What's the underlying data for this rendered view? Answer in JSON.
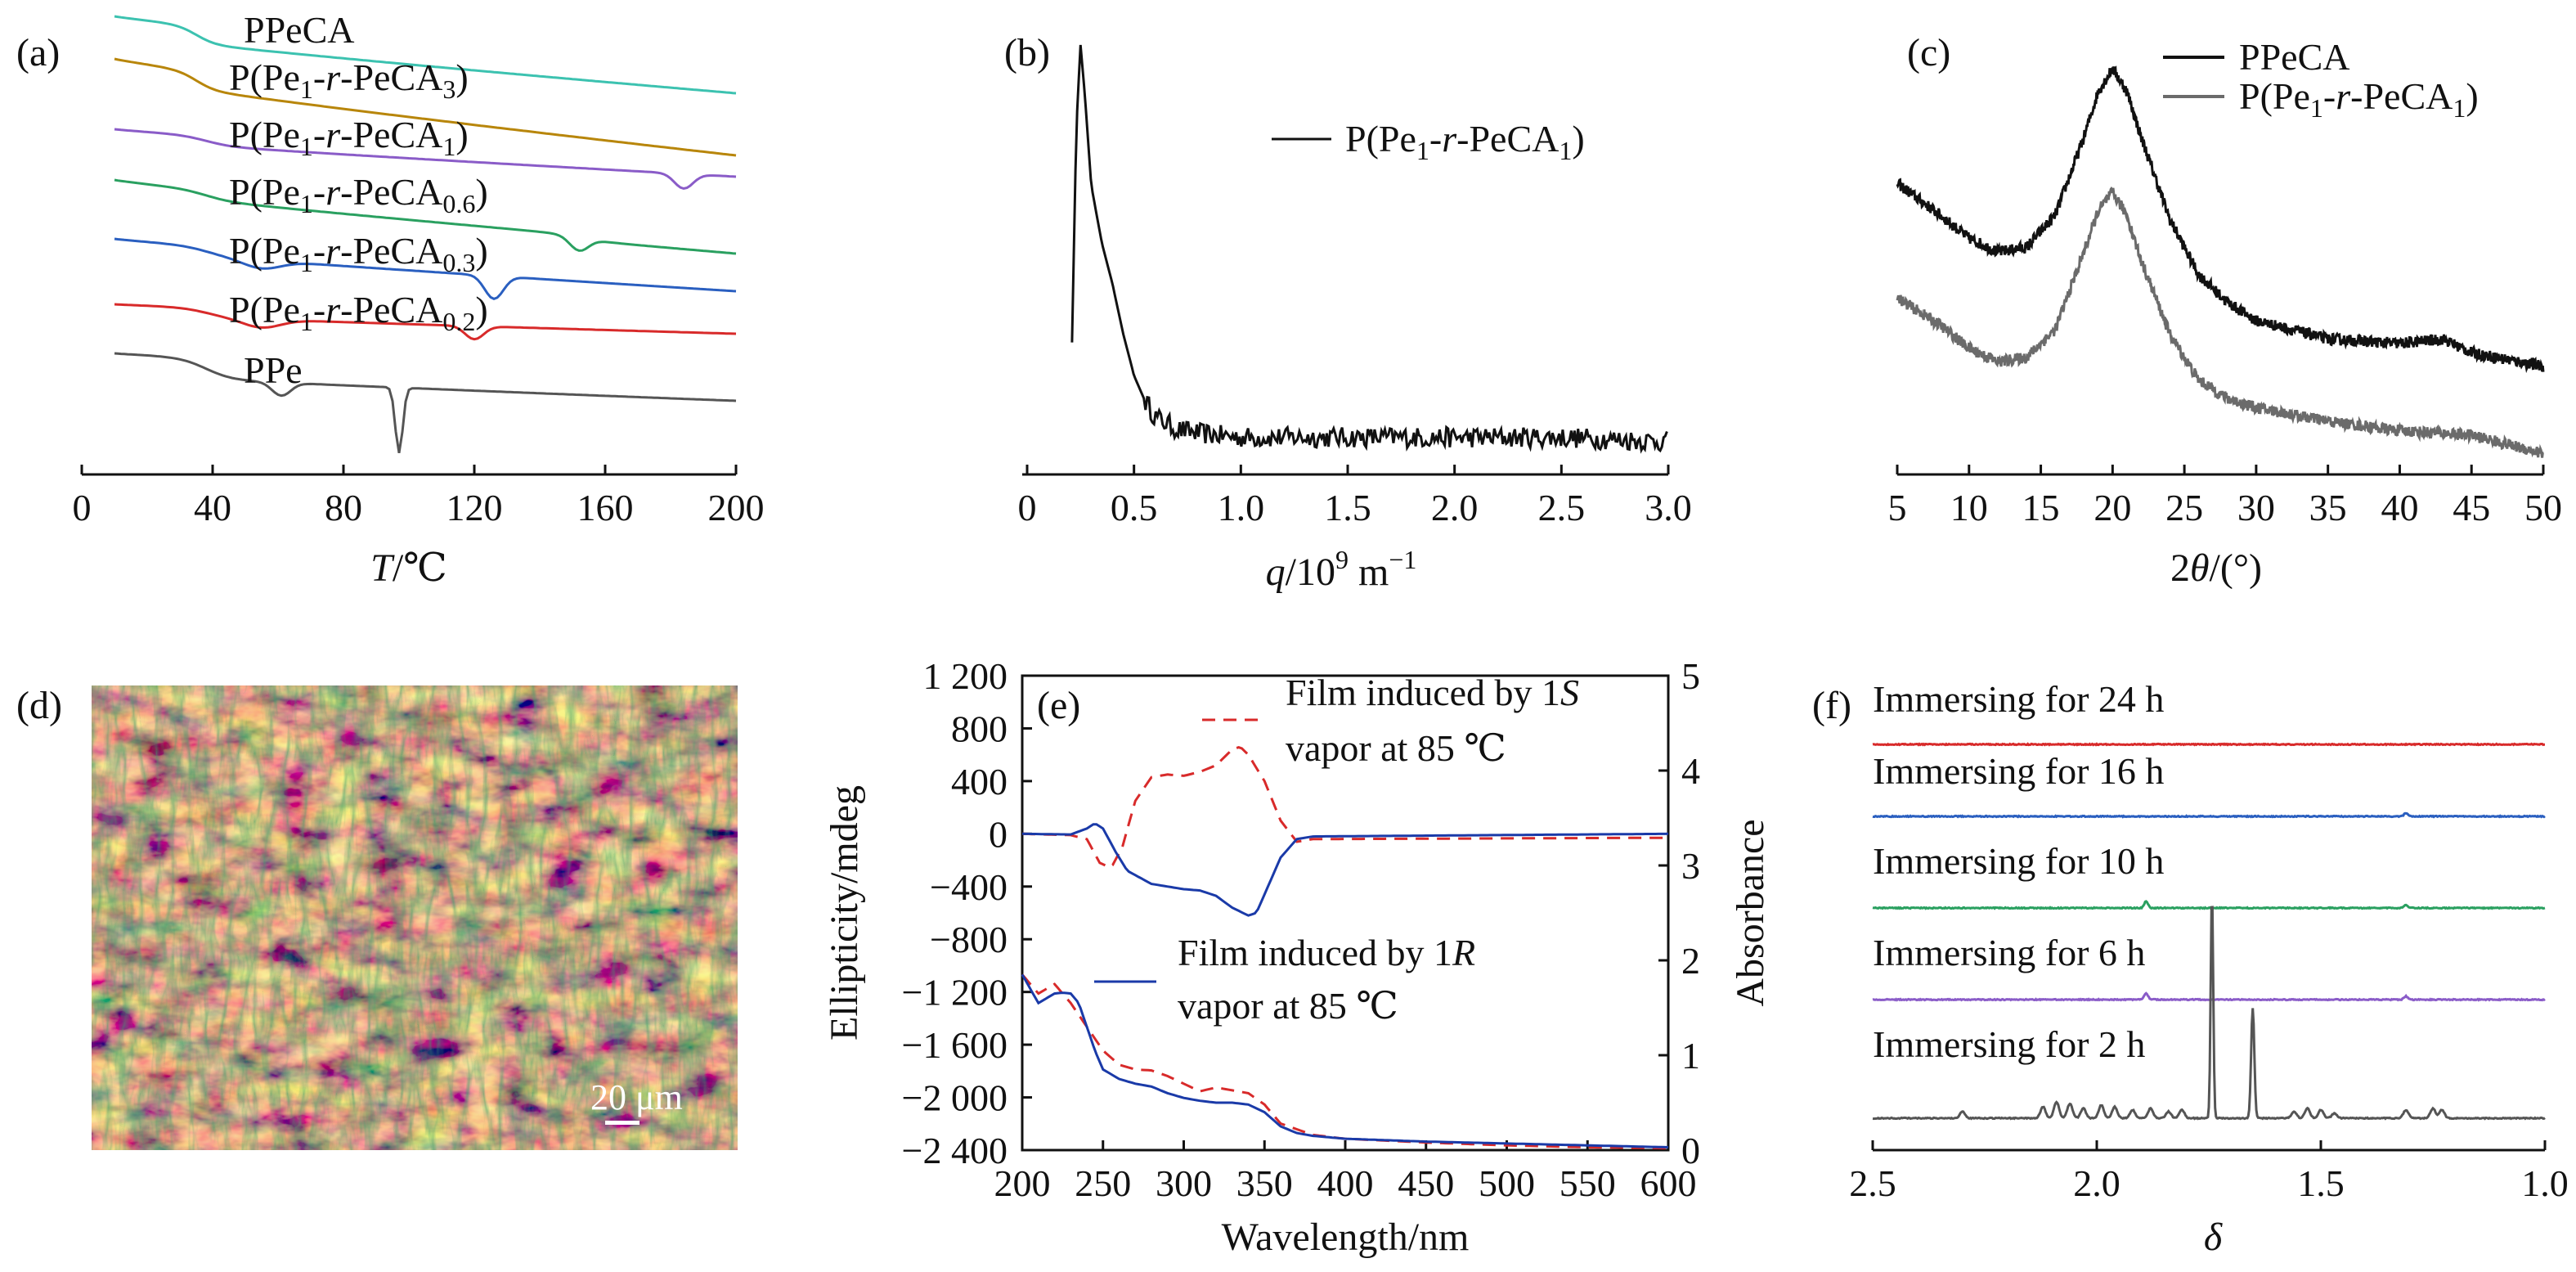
{
  "panel_labels": [
    "(a)",
    "(b)",
    "(c)",
    "(d)",
    "(e)",
    "(f)"
  ],
  "chart_data": [
    {
      "panel": "(a)",
      "type": "line",
      "xlabel": "T/℃",
      "xlim": [
        0,
        200
      ],
      "xticks": [
        "0",
        "40",
        "80",
        "120",
        "160",
        "200"
      ],
      "y_axis": "none (stacked, offset curves)",
      "series": [
        {
          "name": "PPeCA",
          "color": "#3cc2b0",
          "baseline_t": [
            10,
            35,
            60,
            120,
            200
          ],
          "note": "glass step near 35 ℃"
        },
        {
          "name": "P(Pe1-r-PeCA3)",
          "color": "#b8860b",
          "note": "glass step near 35 ℃"
        },
        {
          "name": "P(Pe1-r-PeCA1)",
          "color": "#8a5cc8",
          "features": {
            "endotherm_peak_t": 184
          }
        },
        {
          "name": "P(Pe1-r-PeCA0.6)",
          "color": "#2aa060",
          "features": {
            "endotherm_peak_t": 152
          }
        },
        {
          "name": "P(Pe1-r-PeCA0.3)",
          "color": "#2a5fc0",
          "features": {
            "endotherm_peak_t": 126
          }
        },
        {
          "name": "P(Pe1-r-PeCA0.2)",
          "color": "#d82a2a",
          "features": {
            "endotherm_peak_t": 120
          }
        },
        {
          "name": "PPe",
          "color": "#555555",
          "features": {
            "endotherm_peak_t": 97,
            "minor_peak_t": 61
          }
        }
      ]
    },
    {
      "panel": "(b)",
      "type": "line",
      "xlabel": "q/10⁹ m⁻¹",
      "xlim": [
        0,
        3.0
      ],
      "xticks": [
        "0",
        "0.5",
        "1.0",
        "1.5",
        "2.0",
        "2.5",
        "3.0"
      ],
      "legend": "top-right",
      "series": [
        {
          "name": "P(Pe1-r-PeCA1)",
          "color": "#111111",
          "x": [
            0.21,
            0.23,
            0.25,
            0.27,
            0.3,
            0.35,
            0.4,
            0.45,
            0.5,
            0.55,
            0.6,
            0.7,
            0.8,
            1.0,
            1.5,
            2.0,
            2.5,
            3.0
          ],
          "y": [
            0.28,
            0.8,
            1.0,
            0.88,
            0.66,
            0.52,
            0.42,
            0.3,
            0.2,
            0.14,
            0.1,
            0.07,
            0.06,
            0.05,
            0.05,
            0.05,
            0.05,
            0.04
          ],
          "peak_q": 0.25
        }
      ]
    },
    {
      "panel": "(c)",
      "type": "line",
      "xlabel": "2θ/(°)",
      "xlim": [
        5,
        50
      ],
      "xticks": [
        "5",
        "10",
        "15",
        "20",
        "25",
        "30",
        "35",
        "40",
        "45",
        "50"
      ],
      "legend": "top-right",
      "series": [
        {
          "name": "PPeCA",
          "color": "#111111",
          "x": [
            5,
            8,
            10,
            12,
            14,
            16,
            18,
            19,
            20,
            21,
            22,
            24,
            26,
            28,
            30,
            35,
            40,
            43,
            45,
            50
          ],
          "y": [
            0.6,
            0.53,
            0.48,
            0.45,
            0.46,
            0.53,
            0.7,
            0.8,
            0.85,
            0.8,
            0.7,
            0.52,
            0.4,
            0.34,
            0.3,
            0.26,
            0.25,
            0.26,
            0.23,
            0.2
          ]
        },
        {
          "name": "P(Pe1-r-PeCA1)",
          "color": "#6b6b6b",
          "x": [
            5,
            8,
            10,
            12,
            14,
            16,
            18,
            19,
            20,
            21,
            22,
            24,
            26,
            28,
            30,
            35,
            40,
            45,
            50
          ],
          "y": [
            0.35,
            0.29,
            0.24,
            0.21,
            0.22,
            0.28,
            0.45,
            0.54,
            0.58,
            0.53,
            0.43,
            0.27,
            0.17,
            0.13,
            0.11,
            0.08,
            0.06,
            0.05,
            0.01
          ]
        }
      ]
    },
    {
      "panel": "(e)",
      "type": "line",
      "xlabel": "Wavelength/nm",
      "ylabel_left": "Ellipticity/mdeg",
      "ylabel_right": "Absorbance",
      "xlim": [
        200,
        600
      ],
      "ylim_left": [
        -2400,
        1200
      ],
      "ylim_right": [
        0,
        5
      ],
      "xticks": [
        "200",
        "250",
        "300",
        "350",
        "400",
        "450",
        "500",
        "550",
        "600"
      ],
      "yticks_left": [
        "1 200",
        "800",
        "400",
        "0",
        "−400",
        "−800",
        "−1 200",
        "−1 600",
        "−2 000",
        "−2 400"
      ],
      "yticks_right": [
        "0",
        "1",
        "2",
        "3",
        "4",
        "5"
      ],
      "legend": [
        {
          "line1": "Film induced by 1S",
          "line2": "vapor at 85 ℃",
          "style": "dashed",
          "color": "#d82a2a"
        },
        {
          "line1": "Film induced by 1R",
          "line2": "vapor at 85 ℃",
          "style": "solid",
          "color": "#1a3aa8"
        }
      ],
      "series": [
        {
          "name": "1S CD",
          "axis": "left",
          "color": "#d82a2a",
          "dash": true,
          "x": [
            200,
            230,
            240,
            248,
            255,
            262,
            270,
            280,
            290,
            300,
            310,
            320,
            330,
            335,
            340,
            350,
            360,
            370,
            380,
            600
          ],
          "y": [
            0,
            -10,
            -40,
            -220,
            -260,
            -100,
            250,
            430,
            450,
            440,
            470,
            520,
            640,
            660,
            600,
            400,
            100,
            -60,
            -40,
            -30
          ]
        },
        {
          "name": "1R CD",
          "axis": "left",
          "color": "#1a3aa8",
          "dash": false,
          "x": [
            200,
            230,
            240,
            245,
            250,
            258,
            265,
            280,
            300,
            310,
            320,
            330,
            340,
            345,
            350,
            360,
            370,
            380,
            600
          ],
          "y": [
            0,
            -5,
            40,
            80,
            40,
            -140,
            -280,
            -380,
            -420,
            -430,
            -470,
            -560,
            -620,
            -600,
            -460,
            -180,
            -40,
            -20,
            0
          ]
        },
        {
          "name": "1S Abs",
          "axis": "right",
          "color": "#d82a2a",
          "dash": true,
          "x": [
            200,
            210,
            220,
            230,
            240,
            250,
            260,
            270,
            280,
            290,
            300,
            310,
            320,
            330,
            340,
            350,
            360,
            380,
            400,
            450,
            500,
            550,
            600
          ],
          "y": [
            1.85,
            1.65,
            1.75,
            1.55,
            1.3,
            1.05,
            0.9,
            0.85,
            0.84,
            0.78,
            0.7,
            0.62,
            0.66,
            0.63,
            0.6,
            0.48,
            0.28,
            0.16,
            0.12,
            0.08,
            0.05,
            0.03,
            0.02
          ]
        },
        {
          "name": "1R Abs",
          "axis": "right",
          "color": "#1a3aa8",
          "dash": false,
          "x": [
            200,
            205,
            210,
            215,
            220,
            225,
            230,
            235,
            240,
            245,
            250,
            260,
            270,
            280,
            290,
            300,
            310,
            320,
            330,
            340,
            350,
            360,
            370,
            380,
            400,
            450,
            500,
            550,
            600
          ],
          "y": [
            1.85,
            1.7,
            1.55,
            1.6,
            1.65,
            1.66,
            1.65,
            1.55,
            1.3,
            1.05,
            0.85,
            0.75,
            0.7,
            0.67,
            0.6,
            0.55,
            0.52,
            0.5,
            0.5,
            0.48,
            0.4,
            0.25,
            0.18,
            0.15,
            0.12,
            0.09,
            0.07,
            0.05,
            0.03
          ]
        }
      ]
    },
    {
      "panel": "(f)",
      "type": "line",
      "xlabel": "δ",
      "xlim": [
        2.5,
        1.0
      ],
      "xticks": [
        "2.5",
        "2.0",
        "1.5",
        "1.0"
      ],
      "series": [
        {
          "name": "Immersing for 24 h",
          "color": "#d82a2a",
          "peaks": []
        },
        {
          "name": "Immersing for 16 h",
          "color": "#2a5fc0",
          "peaks": [
            1.31
          ]
        },
        {
          "name": "Immersing for 10 h",
          "color": "#2aa060",
          "peaks": [
            1.89,
            1.31
          ]
        },
        {
          "name": "Immersing for 6 h",
          "color": "#8a5cc8",
          "peaks": [
            1.89,
            1.31
          ]
        },
        {
          "name": "Immersing for 2 h",
          "color": "#555555",
          "peaks": [
            1.74,
            1.65,
            2.09,
            2.05,
            1.95,
            1.52,
            1.31
          ]
        }
      ]
    }
  ],
  "labels": {
    "a": {
      "series": [
        "PPeCA",
        "P(Pe",
        "1",
        "-",
        "r",
        "-PeCA",
        "3",
        ")"
      ],
      "names": [
        {
          "pre": "P(Pe",
          "s1": "1",
          "mid": "-",
          "it": "r",
          "post": "-PeCA",
          "s2": "3",
          "end": ")"
        },
        {
          "pre": "P(Pe",
          "s1": "1",
          "mid": "-",
          "it": "r",
          "post": "-PeCA",
          "s2": "1",
          "end": ")"
        },
        {
          "pre": "P(Pe",
          "s1": "1",
          "mid": "-",
          "it": "r",
          "post": "-PeCA",
          "s2": "0.6",
          "end": ")"
        },
        {
          "pre": "P(Pe",
          "s1": "1",
          "mid": "-",
          "it": "r",
          "post": "-PeCA",
          "s2": "0.3",
          "end": ")"
        },
        {
          "pre": "P(Pe",
          "s1": "1",
          "mid": "-",
          "it": "r",
          "post": "-PeCA",
          "s2": "0.2",
          "end": ")"
        }
      ],
      "top": "PPeCA",
      "bottom": "PPe",
      "xlabel_it": "T",
      "xlabel_rest": "/℃"
    },
    "b": {
      "legend": {
        "pre": "P(Pe",
        "s1": "1",
        "mid": "-",
        "it": "r",
        "post": "-PeCA",
        "s2": "1",
        "end": ")"
      },
      "xlabel_it": "q",
      "xlabel_rest": "/10",
      "xlabel_sup": "9",
      "xlabel_unit": " m",
      "xlabel_sup2": "−1"
    },
    "c": {
      "legend1": "PPeCA",
      "legend2": {
        "pre": "P(Pe",
        "s1": "1",
        "mid": "-",
        "it": "r",
        "post": "-PeCA",
        "s2": "1",
        "end": ")"
      },
      "xlabel_pre": "2",
      "xlabel_it": "θ",
      "xlabel_rest": "/(°)"
    },
    "d": {
      "scalebar": "20 μm"
    },
    "e": {
      "s_line1_pre": "Film induced by 1",
      "s_line1_it": "S",
      "s_line2": "vapor at 85 ℃",
      "r_line1_pre": "Film induced by 1",
      "r_line1_it": "R",
      "r_line2": "vapor at 85 ℃",
      "ylabel_left": "Ellipticity/mdeg",
      "ylabel_right": "Absorbance",
      "xlabel": "Wavelength/nm"
    },
    "f": {
      "xlabel": "δ"
    }
  }
}
